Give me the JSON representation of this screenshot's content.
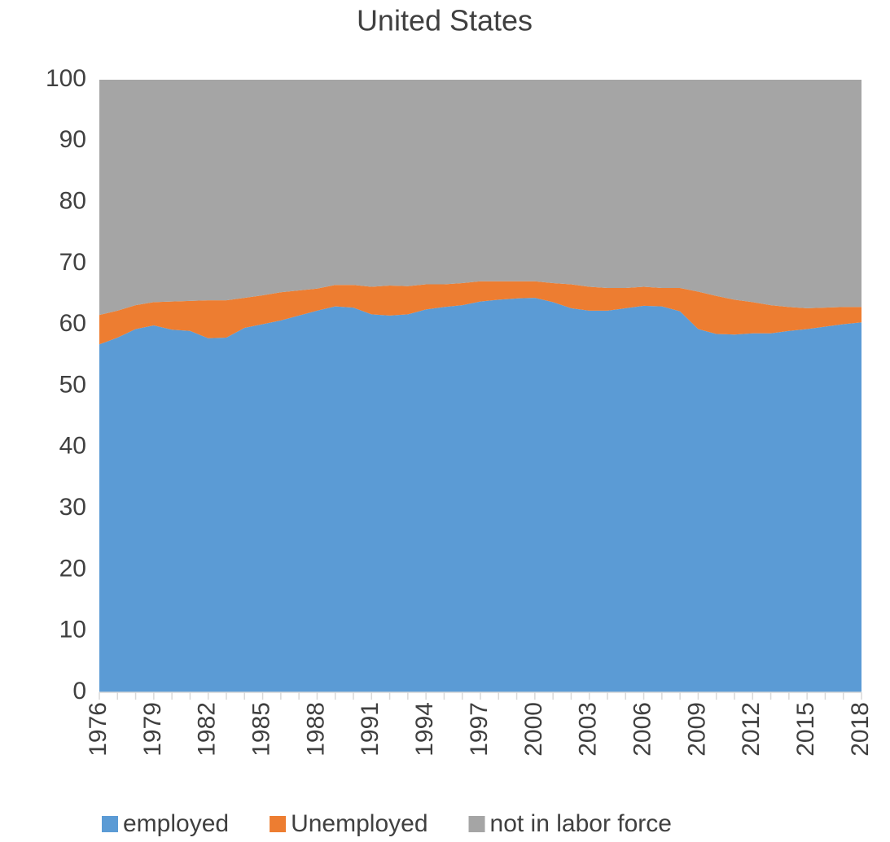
{
  "chart_data": {
    "type": "stacked-area",
    "title": "United States",
    "categories": [
      "1976",
      null,
      null,
      "1979",
      null,
      null,
      "1982",
      null,
      null,
      "1985",
      null,
      null,
      "1988",
      null,
      null,
      "1991",
      null,
      null,
      "1994",
      null,
      null,
      "1997",
      null,
      null,
      "2000",
      null,
      null,
      "2003",
      null,
      null,
      "2006",
      null,
      null,
      "2009",
      null,
      null,
      "2012",
      null,
      null,
      "2015",
      null,
      null,
      "2018"
    ],
    "series": [
      {
        "name": "employed",
        "color": "#5b9bd5",
        "values": [
          56.8,
          57.9,
          59.3,
          59.9,
          59.2,
          59.0,
          57.8,
          57.9,
          59.5,
          60.1,
          60.7,
          61.5,
          62.3,
          63.0,
          62.8,
          61.7,
          61.5,
          61.7,
          62.5,
          62.9,
          63.2,
          63.8,
          64.1,
          64.3,
          64.4,
          63.7,
          62.7,
          62.3,
          62.3,
          62.7,
          63.1,
          63.0,
          62.2,
          59.3,
          58.5,
          58.4,
          58.6,
          58.6,
          59.0,
          59.3,
          59.7,
          60.1,
          60.4
        ]
      },
      {
        "name": "Unemployed",
        "color": "#ed7d31",
        "values": [
          4.8,
          4.4,
          3.9,
          3.8,
          4.6,
          4.9,
          6.2,
          6.1,
          4.9,
          4.7,
          4.6,
          4.1,
          3.6,
          3.5,
          3.7,
          4.5,
          4.9,
          4.6,
          4.1,
          3.7,
          3.6,
          3.3,
          3.0,
          2.8,
          2.7,
          3.1,
          3.9,
          3.9,
          3.7,
          3.3,
          3.1,
          3.0,
          3.8,
          6.1,
          6.2,
          5.7,
          5.1,
          4.6,
          3.9,
          3.4,
          3.1,
          2.8,
          2.5
        ]
      },
      {
        "name": "not in labor force",
        "color": "#a5a5a5",
        "values": [
          38.4,
          37.7,
          36.8,
          36.3,
          36.2,
          36.1,
          36.0,
          36.0,
          35.6,
          35.2,
          34.7,
          34.4,
          34.1,
          33.5,
          33.5,
          33.8,
          33.6,
          33.7,
          33.4,
          33.4,
          33.2,
          32.9,
          32.9,
          32.9,
          32.9,
          33.2,
          33.4,
          33.8,
          34.0,
          34.0,
          33.8,
          34.0,
          34.0,
          34.6,
          35.3,
          35.9,
          36.3,
          36.8,
          37.1,
          37.3,
          37.2,
          37.1,
          37.1
        ]
      }
    ],
    "ylim": [
      0,
      100
    ],
    "yticks": [
      0,
      10,
      20,
      30,
      40,
      50,
      60,
      70,
      80,
      90,
      100
    ],
    "legend": "bottom"
  }
}
